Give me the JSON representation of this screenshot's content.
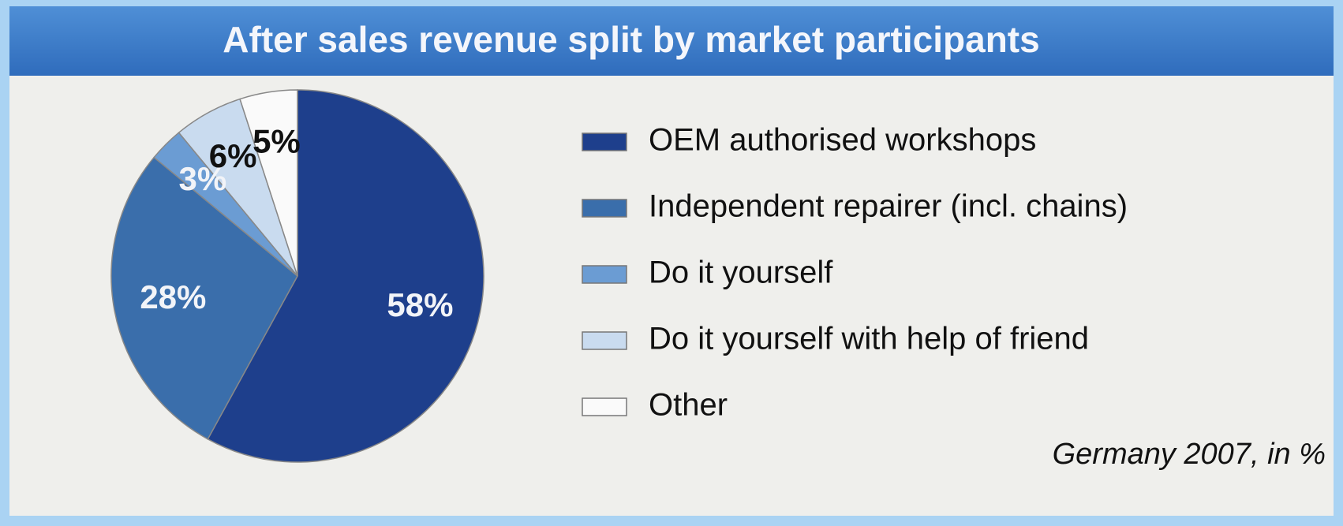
{
  "chart_data": {
    "type": "pie",
    "title": "After sales revenue split by market participants",
    "categories": [
      "OEM authorised workshops",
      "Independent repairer (incl. chains)",
      "Do it yourself",
      "Do it yourself with help of friend",
      "Other"
    ],
    "values": [
      58,
      28,
      3,
      6,
      5
    ],
    "value_labels": [
      "58%",
      "28%",
      "3%",
      "6%",
      "5%"
    ],
    "colors": [
      "#1e3f8c",
      "#3a6eab",
      "#6b9cd3",
      "#c9dbef",
      "#fafafa"
    ],
    "note": "Germany 2007, in %"
  }
}
